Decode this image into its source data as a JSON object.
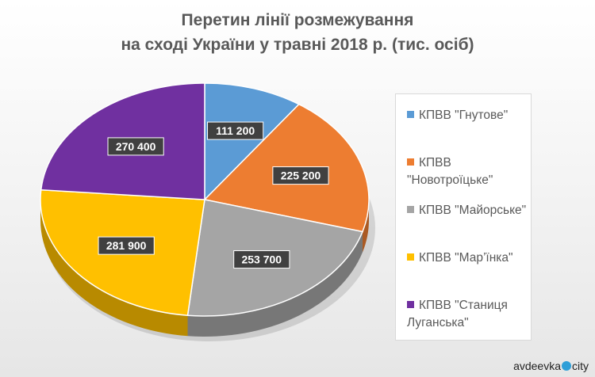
{
  "chart_data": {
    "type": "pie",
    "title_line1": "Перетин лінії розмежування",
    "title_line2": "на сході України у травні 2018 р. (тис. осіб)",
    "slices": [
      {
        "label": "КПВВ \"Гнутове\"",
        "value": 111200,
        "display": "111 200",
        "color": "#5b9bd5"
      },
      {
        "label": "КПВВ \"Новотроїцьке\"",
        "value": 225200,
        "display": "225 200",
        "color": "#ed7d31"
      },
      {
        "label": "КПВВ \"Майорське\"",
        "value": 253700,
        "display": "253 700",
        "color": "#a5a5a5"
      },
      {
        "label": "КПВВ \"Мар’їнка\"",
        "value": 281900,
        "display": "281 900",
        "color": "#ffc000"
      },
      {
        "label": "КПВВ \"Станиця Луганська\"",
        "value": 270400,
        "display": "270 400",
        "color": "#7030a0"
      }
    ],
    "legend_position": "right"
  },
  "watermark": {
    "left": "avdeevka",
    "right": "city"
  }
}
